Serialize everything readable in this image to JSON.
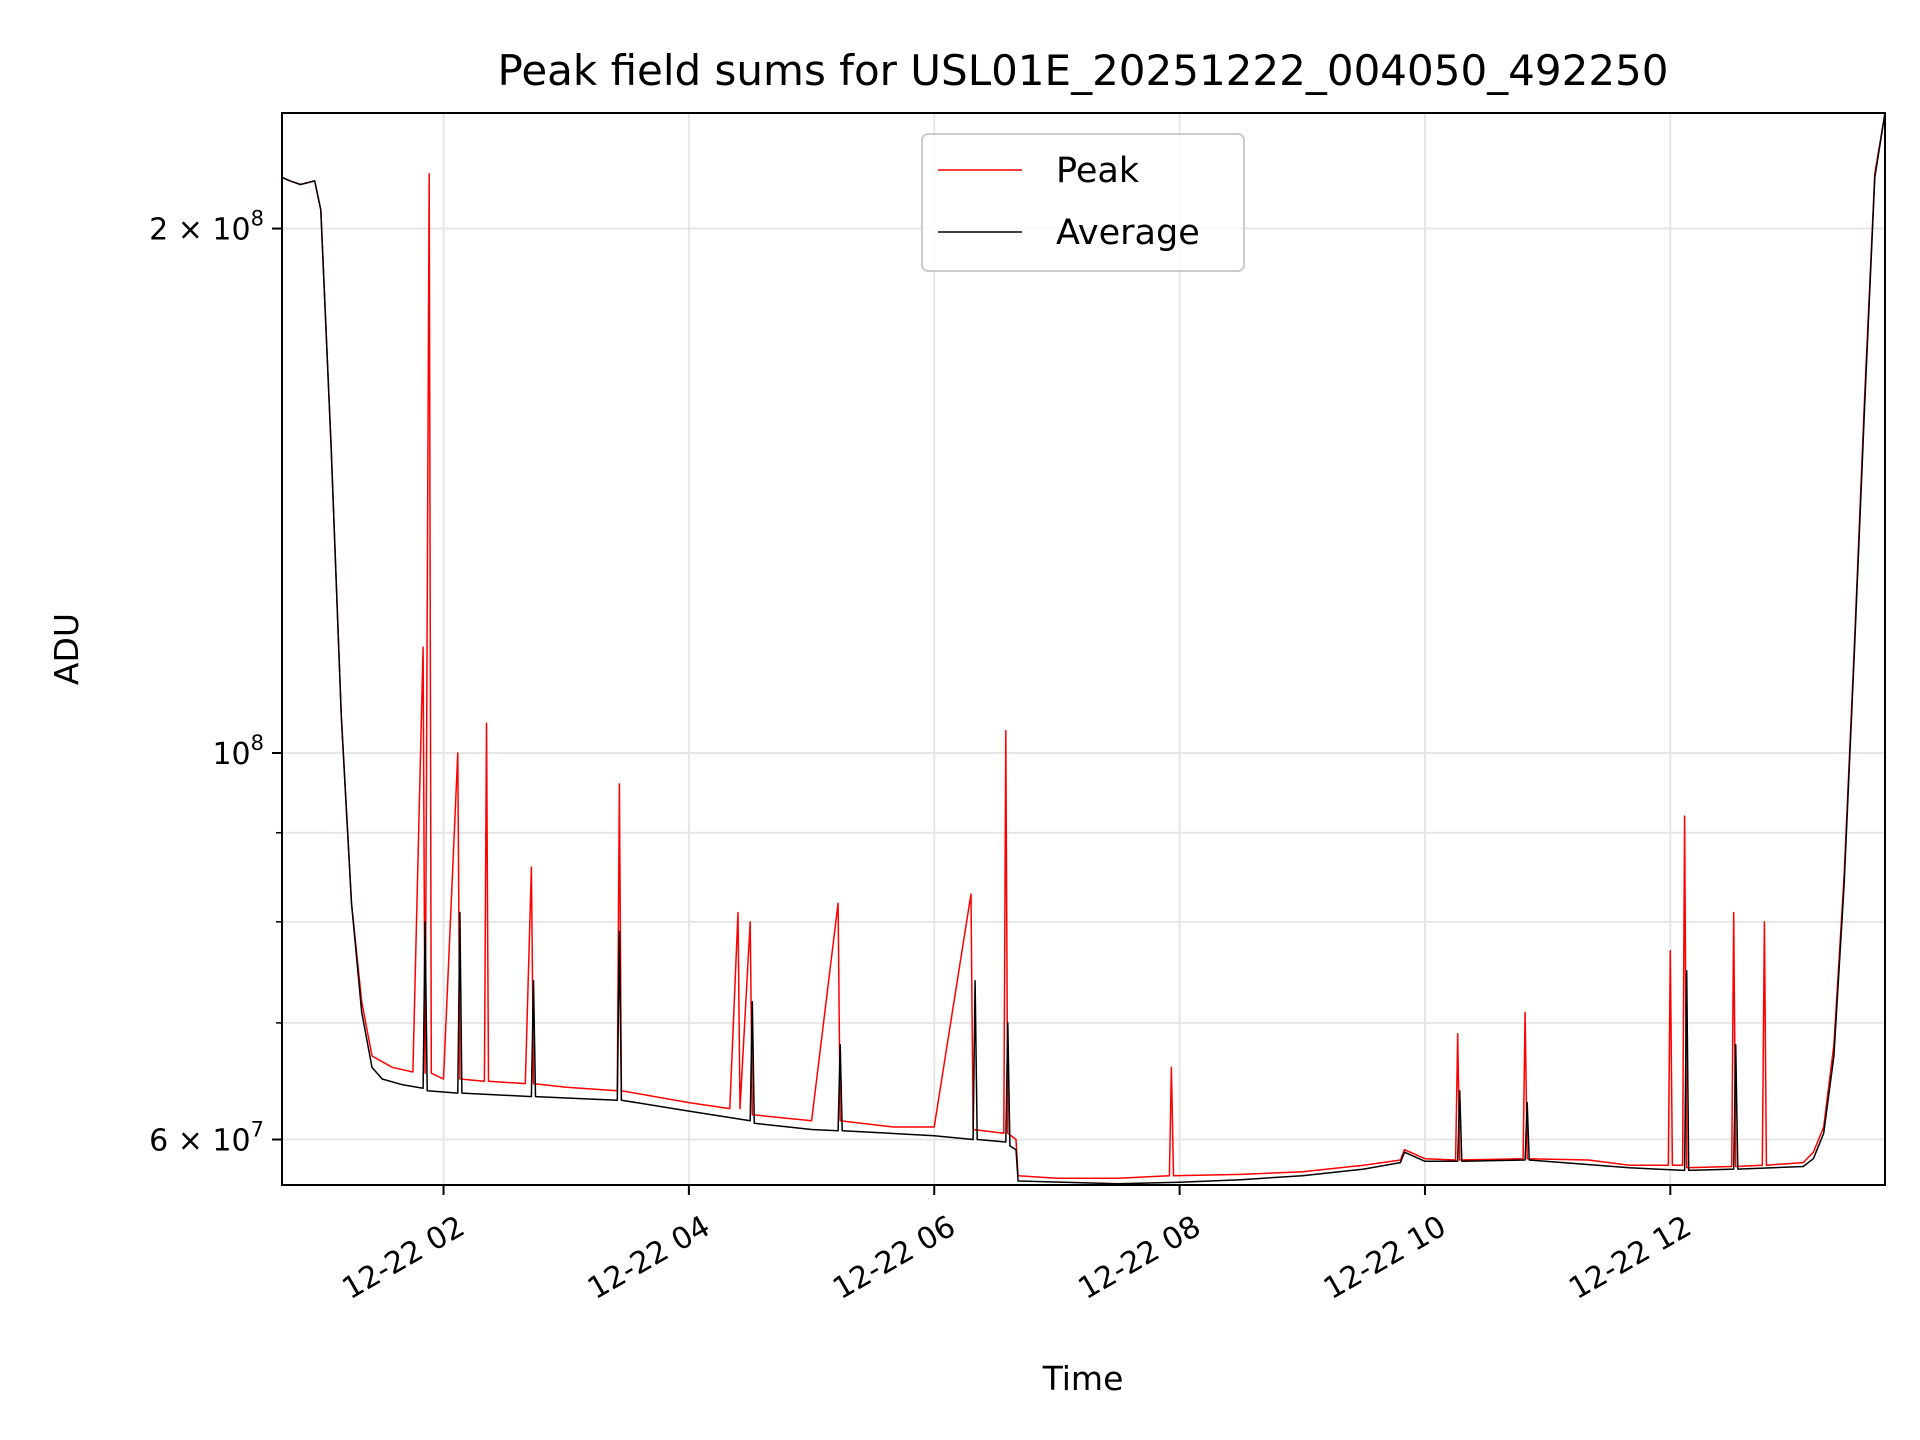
{
  "chart_data": {
    "type": "line",
    "title": "Peak field sums for USL01E_20251222_004050_492250",
    "xlabel": "Time",
    "ylabel": "ADU",
    "y_scale": "log",
    "ylim": [
      56500000,
      233000000
    ],
    "xlim": [
      "2025-12-22 00:41",
      "2025-12-22 13:45"
    ],
    "grid": true,
    "legend_placement": "upper center",
    "x_ticks": [
      {
        "t": "2025-12-22 02:00",
        "label": "12-22 02"
      },
      {
        "t": "2025-12-22 04:00",
        "label": "12-22 04"
      },
      {
        "t": "2025-12-22 06:00",
        "label": "12-22 06"
      },
      {
        "t": "2025-12-22 08:00",
        "label": "12-22 08"
      },
      {
        "t": "2025-12-22 10:00",
        "label": "12-22 10"
      },
      {
        "t": "2025-12-22 12:00",
        "label": "12-22 12"
      }
    ],
    "y_major_ticks": [
      {
        "value": 60000000,
        "label_base": "6 × 10",
        "label_exp": "7"
      },
      {
        "value": 100000000,
        "label_base": "10",
        "label_exp": "8"
      },
      {
        "value": 200000000,
        "label_base": "2 × 10",
        "label_exp": "8"
      }
    ],
    "y_minor_ticks": [
      70000000,
      80000000,
      90000000
    ],
    "series": [
      {
        "name": "Peak",
        "color": "#ff0000",
        "points": [
          [
            "2025-12-22 00:41",
            214000000
          ],
          [
            "2025-12-22 00:45",
            213000000
          ],
          [
            "2025-12-22 00:50",
            212000000
          ],
          [
            "2025-12-22 00:57",
            213000000
          ],
          [
            "2025-12-22 01:00",
            205000000
          ],
          [
            "2025-12-22 01:05",
            150000000
          ],
          [
            "2025-12-22 01:10",
            105000000
          ],
          [
            "2025-12-22 01:15",
            82000000
          ],
          [
            "2025-12-22 01:20",
            72000000
          ],
          [
            "2025-12-22 01:25",
            67000000
          ],
          [
            "2025-12-22 01:30",
            66500000
          ],
          [
            "2025-12-22 01:35",
            66000000
          ],
          [
            "2025-12-22 01:40",
            65800000
          ],
          [
            "2025-12-22 01:45",
            65600000
          ],
          [
            "2025-12-22 01:50",
            115000000
          ],
          [
            "2025-12-22 01:51",
            65500000
          ],
          [
            "2025-12-22 01:53",
            215000000
          ],
          [
            "2025-12-22 01:54",
            65500000
          ],
          [
            "2025-12-22 02:00",
            65000000
          ],
          [
            "2025-12-22 02:07",
            100000000
          ],
          [
            "2025-12-22 02:08",
            65000000
          ],
          [
            "2025-12-22 02:20",
            64800000
          ],
          [
            "2025-12-22 02:21",
            104000000
          ],
          [
            "2025-12-22 02:22",
            64800000
          ],
          [
            "2025-12-22 02:40",
            64600000
          ],
          [
            "2025-12-22 02:43",
            86000000
          ],
          [
            "2025-12-22 02:44",
            64600000
          ],
          [
            "2025-12-22 03:00",
            64300000
          ],
          [
            "2025-12-22 03:25",
            64000000
          ],
          [
            "2025-12-22 03:26",
            96000000
          ],
          [
            "2025-12-22 03:27",
            64000000
          ],
          [
            "2025-12-22 04:00",
            63000000
          ],
          [
            "2025-12-22 04:20",
            62500000
          ],
          [
            "2025-12-22 04:24",
            81000000
          ],
          [
            "2025-12-22 04:25",
            62500000
          ],
          [
            "2025-12-22 04:30",
            80000000
          ],
          [
            "2025-12-22 04:31",
            62000000
          ],
          [
            "2025-12-22 05:00",
            61500000
          ],
          [
            "2025-12-22 05:13",
            82000000
          ],
          [
            "2025-12-22 05:14",
            61500000
          ],
          [
            "2025-12-22 05:40",
            61000000
          ],
          [
            "2025-12-22 06:00",
            61000000
          ],
          [
            "2025-12-22 06:18",
            83000000
          ],
          [
            "2025-12-22 06:19",
            60800000
          ],
          [
            "2025-12-22 06:34",
            60500000
          ],
          [
            "2025-12-22 06:35",
            103000000
          ],
          [
            "2025-12-22 06:36",
            60500000
          ],
          [
            "2025-12-22 06:40",
            60000000
          ],
          [
            "2025-12-22 06:41",
            57200000
          ],
          [
            "2025-12-22 07:00",
            57000000
          ],
          [
            "2025-12-22 07:30",
            57000000
          ],
          [
            "2025-12-22 07:55",
            57200000
          ],
          [
            "2025-12-22 07:56",
            66000000
          ],
          [
            "2025-12-22 07:57",
            57200000
          ],
          [
            "2025-12-22 08:30",
            57300000
          ],
          [
            "2025-12-22 09:00",
            57500000
          ],
          [
            "2025-12-22 09:30",
            58000000
          ],
          [
            "2025-12-22 09:48",
            58400000
          ],
          [
            "2025-12-22 09:50",
            59200000
          ],
          [
            "2025-12-22 10:00",
            58500000
          ],
          [
            "2025-12-22 10:15",
            58400000
          ],
          [
            "2025-12-22 10:16",
            69000000
          ],
          [
            "2025-12-22 10:17",
            58400000
          ],
          [
            "2025-12-22 10:48",
            58500000
          ],
          [
            "2025-12-22 10:49",
            71000000
          ],
          [
            "2025-12-22 10:50",
            58500000
          ],
          [
            "2025-12-22 11:20",
            58400000
          ],
          [
            "2025-12-22 11:40",
            58000000
          ],
          [
            "2025-12-22 11:59",
            58000000
          ],
          [
            "2025-12-22 12:00",
            77000000
          ],
          [
            "2025-12-22 12:01",
            58000000
          ],
          [
            "2025-12-22 12:06",
            58000000
          ],
          [
            "2025-12-22 12:07",
            92000000
          ],
          [
            "2025-12-22 12:08",
            57800000
          ],
          [
            "2025-12-22 12:30",
            57900000
          ],
          [
            "2025-12-22 12:31",
            81000000
          ],
          [
            "2025-12-22 12:32",
            57900000
          ],
          [
            "2025-12-22 12:45",
            58000000
          ],
          [
            "2025-12-22 12:46",
            80000000
          ],
          [
            "2025-12-22 12:47",
            58000000
          ],
          [
            "2025-12-22 13:05",
            58200000
          ],
          [
            "2025-12-22 13:10",
            59000000
          ],
          [
            "2025-12-22 13:15",
            61000000
          ],
          [
            "2025-12-22 13:20",
            68000000
          ],
          [
            "2025-12-22 13:25",
            85000000
          ],
          [
            "2025-12-22 13:30",
            115000000
          ],
          [
            "2025-12-22 13:35",
            160000000
          ],
          [
            "2025-12-22 13:40",
            215000000
          ],
          [
            "2025-12-22 13:45",
            233000000
          ]
        ]
      },
      {
        "name": "Average",
        "color": "#000000",
        "points": [
          [
            "2025-12-22 00:41",
            214000000
          ],
          [
            "2025-12-22 00:45",
            213000000
          ],
          [
            "2025-12-22 00:50",
            212000000
          ],
          [
            "2025-12-22 00:57",
            213000000
          ],
          [
            "2025-12-22 01:00",
            205000000
          ],
          [
            "2025-12-22 01:05",
            150000000
          ],
          [
            "2025-12-22 01:10",
            105000000
          ],
          [
            "2025-12-22 01:15",
            82000000
          ],
          [
            "2025-12-22 01:20",
            71000000
          ],
          [
            "2025-12-22 01:25",
            66000000
          ],
          [
            "2025-12-22 01:30",
            65000000
          ],
          [
            "2025-12-22 01:40",
            64500000
          ],
          [
            "2025-12-22 01:50",
            64200000
          ],
          [
            "2025-12-22 01:51",
            80000000
          ],
          [
            "2025-12-22 01:52",
            64000000
          ],
          [
            "2025-12-22 02:07",
            63800000
          ],
          [
            "2025-12-22 02:08",
            81000000
          ],
          [
            "2025-12-22 02:09",
            63800000
          ],
          [
            "2025-12-22 02:43",
            63500000
          ],
          [
            "2025-12-22 02:44",
            74000000
          ],
          [
            "2025-12-22 02:45",
            63500000
          ],
          [
            "2025-12-22 03:25",
            63200000
          ],
          [
            "2025-12-22 03:26",
            79000000
          ],
          [
            "2025-12-22 03:27",
            63200000
          ],
          [
            "2025-12-22 04:00",
            62300000
          ],
          [
            "2025-12-22 04:30",
            61500000
          ],
          [
            "2025-12-22 04:31",
            72000000
          ],
          [
            "2025-12-22 04:32",
            61300000
          ],
          [
            "2025-12-22 05:00",
            60800000
          ],
          [
            "2025-12-22 05:13",
            60700000
          ],
          [
            "2025-12-22 05:14",
            68000000
          ],
          [
            "2025-12-22 05:15",
            60700000
          ],
          [
            "2025-12-22 06:00",
            60300000
          ],
          [
            "2025-12-22 06:19",
            60000000
          ],
          [
            "2025-12-22 06:20",
            74000000
          ],
          [
            "2025-12-22 06:21",
            60000000
          ],
          [
            "2025-12-22 06:35",
            59800000
          ],
          [
            "2025-12-22 06:36",
            70000000
          ],
          [
            "2025-12-22 06:37",
            59500000
          ],
          [
            "2025-12-22 06:40",
            59200000
          ],
          [
            "2025-12-22 06:41",
            56800000
          ],
          [
            "2025-12-22 07:30",
            56600000
          ],
          [
            "2025-12-22 08:00",
            56700000
          ],
          [
            "2025-12-22 08:30",
            56900000
          ],
          [
            "2025-12-22 09:00",
            57200000
          ],
          [
            "2025-12-22 09:30",
            57700000
          ],
          [
            "2025-12-22 09:48",
            58200000
          ],
          [
            "2025-12-22 09:50",
            59000000
          ],
          [
            "2025-12-22 10:00",
            58300000
          ],
          [
            "2025-12-22 10:16",
            58300000
          ],
          [
            "2025-12-22 10:17",
            64000000
          ],
          [
            "2025-12-22 10:18",
            58300000
          ],
          [
            "2025-12-22 10:49",
            58400000
          ],
          [
            "2025-12-22 10:50",
            63000000
          ],
          [
            "2025-12-22 10:51",
            58400000
          ],
          [
            "2025-12-22 11:40",
            57800000
          ],
          [
            "2025-12-22 12:07",
            57600000
          ],
          [
            "2025-12-22 12:08",
            75000000
          ],
          [
            "2025-12-22 12:09",
            57600000
          ],
          [
            "2025-12-22 12:31",
            57700000
          ],
          [
            "2025-12-22 12:32",
            68000000
          ],
          [
            "2025-12-22 12:33",
            57700000
          ],
          [
            "2025-12-22 13:05",
            57900000
          ],
          [
            "2025-12-22 13:10",
            58500000
          ],
          [
            "2025-12-22 13:15",
            60500000
          ],
          [
            "2025-12-22 13:20",
            67000000
          ],
          [
            "2025-12-22 13:25",
            84000000
          ],
          [
            "2025-12-22 13:30",
            114000000
          ],
          [
            "2025-12-22 13:35",
            158000000
          ],
          [
            "2025-12-22 13:40",
            214000000
          ],
          [
            "2025-12-22 13:45",
            233000000
          ]
        ]
      }
    ]
  }
}
